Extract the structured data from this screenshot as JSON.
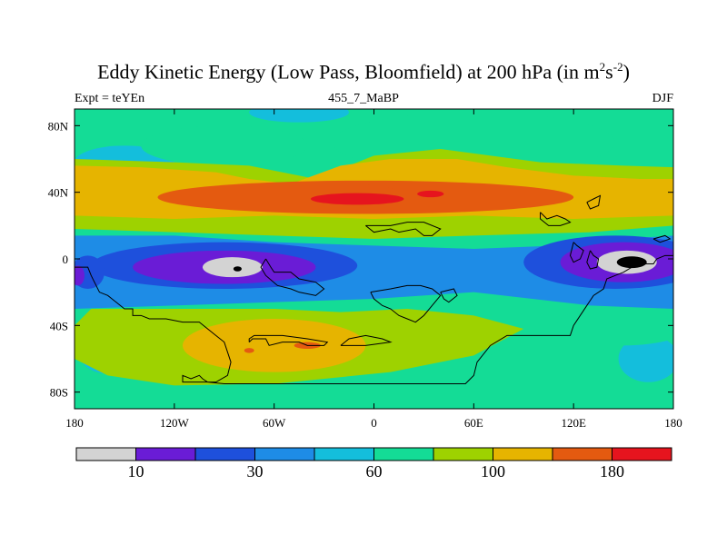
{
  "chart_data": {
    "type": "heatmap",
    "title_main": "Eddy Kinetic Energy (Low Pass, Bloomfield) at 200 hPa (in m",
    "title_sup1": "2",
    "title_mid": "s",
    "title_sup2": "-2",
    "title_end": ")",
    "subtitle_left": "Expt = teYEn",
    "subtitle_center": "455_7_MaBP",
    "subtitle_right": "DJF",
    "x_range": [
      -180,
      180
    ],
    "y_range": [
      -90,
      90
    ],
    "x_ticks": [
      {
        "value": -180,
        "label": "180"
      },
      {
        "value": -120,
        "label": "120W"
      },
      {
        "value": -60,
        "label": "60W"
      },
      {
        "value": 0,
        "label": "0"
      },
      {
        "value": 60,
        "label": "60E"
      },
      {
        "value": 120,
        "label": "120E"
      },
      {
        "value": 180,
        "label": "180"
      }
    ],
    "y_ticks": [
      {
        "value": 80,
        "label": "80N"
      },
      {
        "value": 40,
        "label": "40N"
      },
      {
        "value": 0,
        "label": "0"
      },
      {
        "value": -40,
        "label": "40S"
      },
      {
        "value": -80,
        "label": "80S"
      }
    ],
    "colorbar": {
      "colors": [
        "#d3d3d3",
        "#6a1cd6",
        "#1e50dc",
        "#1e8ce6",
        "#14bedc",
        "#14dc96",
        "#9ed200",
        "#e6b400",
        "#e45a10",
        "#e6141e"
      ],
      "levels": [
        0,
        10,
        20,
        30,
        45,
        60,
        80,
        100,
        140,
        180,
        220
      ],
      "labels": [
        {
          "level": 10,
          "text": "10"
        },
        {
          "level": 30,
          "text": "30"
        },
        {
          "level": 60,
          "text": "60"
        },
        {
          "level": 100,
          "text": "100"
        },
        {
          "level": 180,
          "text": "180"
        }
      ]
    },
    "field_regions": [
      {
        "level": 5,
        "shape": "ellipse",
        "lon": -45,
        "lat": 88,
        "dlon": 30,
        "dlat": 6
      },
      {
        "level": 5,
        "shape": "ellipse",
        "lon": -150,
        "lat": 58,
        "dlon": 30,
        "dlat": 10
      },
      {
        "level": 5,
        "shape": "ellipse",
        "lon": -160,
        "lat": -55,
        "dlon": 18,
        "dlat": 14
      },
      {
        "level": 5,
        "shape": "ellipse",
        "lon": 165,
        "lat": -60,
        "dlon": 18,
        "dlat": 14
      },
      {
        "level": 6,
        "shape": "ellipse",
        "lon": 60,
        "lat": 70,
        "dlon": 85,
        "dlat": 18
      },
      {
        "level": 6,
        "shape": "ellipse",
        "lon": -90,
        "lat": 68,
        "dlon": 50,
        "dlat": 12
      },
      {
        "level": 6,
        "shape": "ellipse",
        "lon": 45,
        "lat": -48,
        "dlon": 35,
        "dlat": 14
      },
      {
        "level": 6,
        "shape": "ellipse",
        "lon": 150,
        "lat": -40,
        "dlon": 40,
        "dlat": 12
      },
      {
        "level": 7,
        "shape": "poly",
        "points": [
          [
            -180,
            60
          ],
          [
            -120,
            58
          ],
          [
            -75,
            56
          ],
          [
            -35,
            48
          ],
          [
            0,
            62
          ],
          [
            40,
            66
          ],
          [
            100,
            58
          ],
          [
            150,
            56
          ],
          [
            180,
            55
          ],
          [
            180,
            20
          ],
          [
            130,
            16
          ],
          [
            60,
            14
          ],
          [
            0,
            12
          ],
          [
            -60,
            14
          ],
          [
            -120,
            16
          ],
          [
            -180,
            18
          ]
        ]
      },
      {
        "level": 7,
        "shape": "poly",
        "points": [
          [
            -170,
            -30
          ],
          [
            -120,
            -30
          ],
          [
            -60,
            -30
          ],
          [
            -20,
            -32
          ],
          [
            20,
            -30
          ],
          [
            60,
            -34
          ],
          [
            90,
            -42
          ],
          [
            60,
            -58
          ],
          [
            10,
            -68
          ],
          [
            -60,
            -75
          ],
          [
            -120,
            -76
          ],
          [
            -160,
            -70
          ],
          [
            -180,
            -60
          ],
          [
            -180,
            -40
          ]
        ]
      },
      {
        "level": 8,
        "shape": "poly",
        "points": [
          [
            -180,
            56
          ],
          [
            -140,
            55
          ],
          [
            -95,
            52
          ],
          [
            -75,
            48
          ],
          [
            -50,
            45
          ],
          [
            -20,
            56
          ],
          [
            10,
            60
          ],
          [
            50,
            60
          ],
          [
            80,
            55
          ],
          [
            120,
            50
          ],
          [
            160,
            48
          ],
          [
            180,
            48
          ],
          [
            180,
            26
          ],
          [
            120,
            24
          ],
          [
            60,
            26
          ],
          [
            0,
            24
          ],
          [
            -60,
            26
          ],
          [
            -120,
            24
          ],
          [
            -180,
            26
          ]
        ]
      },
      {
        "level": 8,
        "shape": "ellipse",
        "lon": -60,
        "lat": -52,
        "dlon": 55,
        "dlat": 16
      },
      {
        "level": 9,
        "shape": "ellipse",
        "lon": -5,
        "lat": 37,
        "dlon": 125,
        "dlat": 10
      },
      {
        "level": 9,
        "shape": "ellipse",
        "lon": -40,
        "lat": 40,
        "dlon": 55,
        "dlat": 6
      },
      {
        "level": 9,
        "shape": "ellipse",
        "lon": -75,
        "lat": -55,
        "dlon": 3,
        "dlat": 1.5
      },
      {
        "level": 9,
        "shape": "ellipse",
        "lon": -40,
        "lat": -52,
        "dlon": 8,
        "dlat": 2
      },
      {
        "level": 10,
        "shape": "ellipse",
        "lon": -10,
        "lat": 36,
        "dlon": 28,
        "dlat": 3.5
      },
      {
        "level": 10,
        "shape": "ellipse",
        "lon": 34,
        "lat": 39,
        "dlon": 8,
        "dlat": 2
      },
      {
        "level": 4,
        "shape": "poly",
        "points": [
          [
            -180,
            14
          ],
          [
            -120,
            14
          ],
          [
            -60,
            10
          ],
          [
            0,
            8
          ],
          [
            60,
            6
          ],
          [
            110,
            8
          ],
          [
            150,
            12
          ],
          [
            180,
            14
          ],
          [
            180,
            -30
          ],
          [
            130,
            -28
          ],
          [
            60,
            -20
          ],
          [
            0,
            -24
          ],
          [
            -60,
            -26
          ],
          [
            -120,
            -28
          ],
          [
            -180,
            -30
          ]
        ]
      },
      {
        "level": 3,
        "shape": "ellipse",
        "lon": -90,
        "lat": -4,
        "dlon": 80,
        "dlat": 14
      },
      {
        "level": 3,
        "shape": "ellipse",
        "lon": 145,
        "lat": -2,
        "dlon": 55,
        "dlat": 16
      },
      {
        "level": 3,
        "shape": "ellipse",
        "lon": -172,
        "lat": -8,
        "dlon": 10,
        "dlat": 10
      },
      {
        "level": 2,
        "shape": "ellipse",
        "lon": -90,
        "lat": -5,
        "dlon": 55,
        "dlat": 10
      },
      {
        "level": 2,
        "shape": "ellipse",
        "lon": 150,
        "lat": -2,
        "dlon": 38,
        "dlat": 12
      },
      {
        "level": 2,
        "shape": "ellipse",
        "lon": -178,
        "lat": -10,
        "dlon": 4,
        "dlat": 6
      },
      {
        "level": 1,
        "shape": "ellipse",
        "lon": -85,
        "lat": -5,
        "dlon": 18,
        "dlat": 6
      },
      {
        "level": 1,
        "shape": "ellipse",
        "lon": 152,
        "lat": -2,
        "dlon": 18,
        "dlat": 7
      },
      {
        "level": 0,
        "shape": "ellipse",
        "lon": -82,
        "lat": -6,
        "dlon": 2.5,
        "dlat": 1.5
      },
      {
        "level": 0,
        "shape": "ellipse",
        "lon": 155,
        "lat": -2,
        "dlon": 9,
        "dlat": 3.5
      }
    ],
    "coastlines": [
      [
        [
          -180,
          -5
        ],
        [
          -172,
          -5
        ],
        [
          -170,
          -10
        ],
        [
          -168,
          -14
        ],
        [
          -165,
          -20
        ],
        [
          -160,
          -22
        ],
        [
          -155,
          -26
        ],
        [
          -150,
          -30
        ],
        [
          -145,
          -30
        ],
        [
          -145,
          -34
        ],
        [
          -140,
          -34
        ],
        [
          -135,
          -36
        ],
        [
          -125,
          -36
        ],
        [
          -115,
          -38
        ],
        [
          -105,
          -38
        ],
        [
          -100,
          -42
        ],
        [
          -95,
          -46
        ],
        [
          -90,
          -50
        ],
        [
          -88,
          -56
        ],
        [
          -86,
          -62
        ],
        [
          -88,
          -70
        ],
        [
          -95,
          -74
        ],
        [
          -115,
          -74
        ],
        [
          -115,
          -70
        ],
        [
          -110,
          -72
        ],
        [
          -105,
          -70
        ],
        [
          -103,
          -72
        ],
        [
          -100,
          -74
        ],
        [
          -90,
          -75
        ],
        [
          -55,
          -75
        ],
        [
          -20,
          -75
        ],
        [
          20,
          -75
        ],
        [
          55,
          -75
        ],
        [
          60,
          -70
        ],
        [
          62,
          -62
        ],
        [
          70,
          -52
        ],
        [
          80,
          -46
        ],
        [
          100,
          -46
        ],
        [
          118,
          -46
        ],
        [
          120,
          -40
        ],
        [
          124,
          -34
        ],
        [
          128,
          -28
        ],
        [
          132,
          -22
        ],
        [
          138,
          -18
        ],
        [
          140,
          -12
        ],
        [
          145,
          -10
        ],
        [
          150,
          -8
        ],
        [
          155,
          -5
        ],
        [
          160,
          -3
        ],
        [
          168,
          -3
        ],
        [
          170,
          0
        ],
        [
          175,
          2
        ],
        [
          180,
          2
        ]
      ],
      [
        [
          -75,
          -50
        ],
        [
          -73,
          -48
        ],
        [
          -65,
          -48
        ],
        [
          -63,
          -52
        ],
        [
          -55,
          -50
        ],
        [
          -45,
          -50
        ],
        [
          -40,
          -52
        ],
        [
          -30,
          -52
        ],
        [
          -28,
          -50
        ],
        [
          -40,
          -48
        ],
        [
          -55,
          -46
        ],
        [
          -65,
          -46
        ],
        [
          -72,
          -46
        ],
        [
          -75,
          -48
        ],
        [
          -75,
          -50
        ]
      ],
      [
        [
          -20,
          -52
        ],
        [
          -15,
          -48
        ],
        [
          -5,
          -46
        ],
        [
          5,
          -48
        ],
        [
          10,
          -50
        ],
        [
          -5,
          -52
        ],
        [
          -20,
          -52
        ]
      ],
      [
        [
          -65,
          0
        ],
        [
          -62,
          -5
        ],
        [
          -60,
          -8
        ],
        [
          -50,
          -8
        ],
        [
          -45,
          -12
        ],
        [
          -35,
          -14
        ],
        [
          -30,
          -18
        ],
        [
          -35,
          -22
        ],
        [
          -45,
          -20
        ],
        [
          -50,
          -18
        ],
        [
          -58,
          -16
        ],
        [
          -65,
          -10
        ],
        [
          -68,
          -5
        ],
        [
          -65,
          0
        ]
      ],
      [
        [
          -5,
          20
        ],
        [
          0,
          16
        ],
        [
          10,
          18
        ],
        [
          15,
          16
        ],
        [
          25,
          18
        ],
        [
          30,
          14
        ],
        [
          35,
          14
        ],
        [
          40,
          18
        ],
        [
          30,
          22
        ],
        [
          20,
          22
        ],
        [
          10,
          20
        ],
        [
          -5,
          20
        ]
      ],
      [
        [
          -2,
          -20
        ],
        [
          0,
          -24
        ],
        [
          5,
          -28
        ],
        [
          10,
          -30
        ],
        [
          15,
          -34
        ],
        [
          20,
          -36
        ],
        [
          25,
          -38
        ],
        [
          30,
          -34
        ],
        [
          35,
          -28
        ],
        [
          40,
          -22
        ],
        [
          35,
          -18
        ],
        [
          28,
          -16
        ],
        [
          20,
          -16
        ],
        [
          10,
          -18
        ],
        [
          -2,
          -20
        ]
      ],
      [
        [
          40,
          -20
        ],
        [
          42,
          -24
        ],
        [
          45,
          -26
        ],
        [
          50,
          -22
        ],
        [
          48,
          -18
        ],
        [
          40,
          -20
        ]
      ],
      [
        [
          100,
          28
        ],
        [
          104,
          24
        ],
        [
          110,
          26
        ],
        [
          115,
          24
        ],
        [
          118,
          22
        ],
        [
          112,
          20
        ],
        [
          105,
          20
        ],
        [
          100,
          24
        ],
        [
          100,
          28
        ]
      ],
      [
        [
          128,
          34
        ],
        [
          132,
          36
        ],
        [
          136,
          38
        ],
        [
          135,
          32
        ],
        [
          130,
          30
        ],
        [
          128,
          34
        ]
      ],
      [
        [
          120,
          10
        ],
        [
          122,
          8
        ],
        [
          126,
          5
        ],
        [
          124,
          0
        ],
        [
          120,
          -2
        ],
        [
          118,
          2
        ],
        [
          120,
          10
        ]
      ],
      [
        [
          130,
          5
        ],
        [
          132,
          2
        ],
        [
          135,
          0
        ],
        [
          134,
          -5
        ],
        [
          130,
          -6
        ],
        [
          128,
          -2
        ],
        [
          130,
          5
        ]
      ],
      [
        [
          168,
          12
        ],
        [
          172,
          10
        ],
        [
          178,
          12
        ],
        [
          175,
          14
        ],
        [
          168,
          12
        ]
      ]
    ]
  }
}
